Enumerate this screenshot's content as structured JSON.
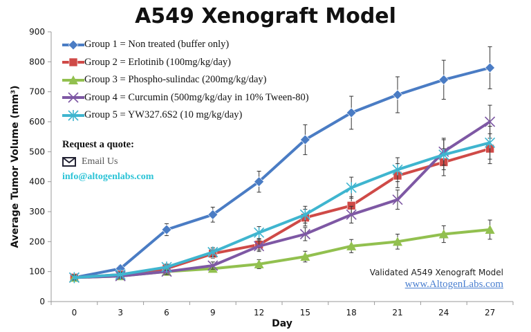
{
  "chart_data": {
    "type": "line",
    "title": "A549 Xenograft Model",
    "xlabel": "Day",
    "ylabel": "Average Tumor Volume (mm³)",
    "x": [
      0,
      3,
      6,
      9,
      12,
      15,
      18,
      21,
      24,
      27
    ],
    "xlim": [
      -1.5,
      28.5
    ],
    "ylim": [
      0,
      900
    ],
    "yticks": [
      0,
      100,
      200,
      300,
      400,
      500,
      600,
      700,
      800,
      900
    ],
    "grid": false,
    "legend_placement": "top-left",
    "series": [
      {
        "name": "Group 1 = Non treated (buffer only)",
        "color": "#4a7cc4",
        "marker": "diamond",
        "values": [
          80,
          110,
          240,
          290,
          400,
          540,
          630,
          690,
          740,
          780
        ],
        "errors": [
          8,
          10,
          20,
          25,
          35,
          50,
          55,
          60,
          65,
          70
        ]
      },
      {
        "name": "Group 2 = Erlotinib (100mg/kg/day)",
        "color": "#cf4a47",
        "marker": "square",
        "values": [
          80,
          90,
          110,
          160,
          190,
          280,
          320,
          420,
          465,
          510
        ],
        "errors": [
          8,
          8,
          10,
          15,
          18,
          28,
          30,
          40,
          45,
          50
        ]
      },
      {
        "name": "Group 3 = Phospho-sulindac (200mg/kg/day)",
        "color": "#92c04f",
        "marker": "triangle",
        "values": [
          80,
          85,
          100,
          110,
          125,
          150,
          185,
          200,
          225,
          240
        ],
        "errors": [
          8,
          8,
          10,
          12,
          15,
          18,
          22,
          25,
          28,
          32
        ]
      },
      {
        "name": "Group 4 = Curcumin (500mg/kg/day in 10% Tween-80)",
        "color": "#7e58a4",
        "marker": "x",
        "values": [
          80,
          85,
          100,
          120,
          185,
          225,
          290,
          340,
          500,
          600
        ],
        "errors": [
          8,
          8,
          10,
          12,
          18,
          22,
          28,
          32,
          45,
          55
        ]
      },
      {
        "name": "Group 5 = YW327.6S2 (10 mg/kg/day)",
        "color": "#3fb5cf",
        "marker": "star",
        "values": [
          80,
          90,
          115,
          165,
          230,
          290,
          380,
          440,
          490,
          530
        ],
        "errors": [
          8,
          8,
          10,
          15,
          20,
          28,
          35,
          40,
          50,
          55
        ]
      }
    ]
  },
  "quote": {
    "heading": "Request a quote:",
    "email_label": "Email Us",
    "email": "info@altogenlabs.com",
    "icon": "envelope-icon"
  },
  "watermark": {
    "text": "Validated A549 Xenograft Model",
    "url": "www.AltogenLabs.com"
  }
}
